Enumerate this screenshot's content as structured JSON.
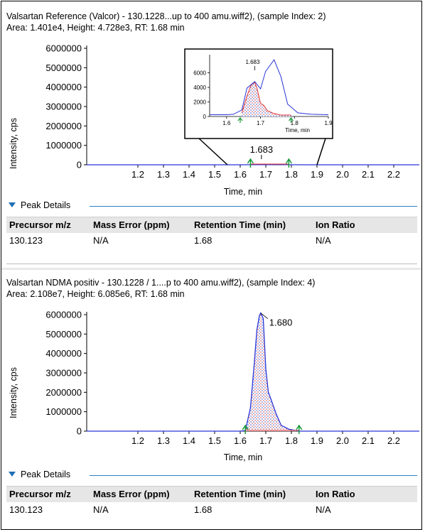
{
  "panel1": {
    "title": "Valsartan Reference (Valcor) - 130.1228...up to 400 amu.wiff2), (sample Index: 2)",
    "stats": "Area: 1.401e4, Height: 4.728e3, RT: 1.68 min"
  },
  "panel2": {
    "title": "Valsartan NDMA positiv - 130.1228 / 1....p to 400 amu.wiff2), (sample Index: 4)",
    "stats": "Area: 2.108e7, Height: 6.085e6, RT: 1.68 min"
  },
  "peak_details": {
    "label": "Peak Details",
    "columns": [
      "Precursor m/z",
      "Mass Error (ppm)",
      "Retention Time (min)",
      "Ion Ratio"
    ],
    "rows_panel1": [
      [
        "130.123",
        "N/A",
        "1.68",
        "N/A"
      ]
    ],
    "rows_panel2": [
      [
        "130.123",
        "N/A",
        "1.68",
        "N/A"
      ]
    ]
  },
  "colors": {
    "trace_blue": "#2a35d6",
    "trace_red": "#e03030",
    "marker_green": "#1a9a3a",
    "accent_blue": "#1f6fb5"
  },
  "chart_data": [
    {
      "type": "line",
      "xlabel": "Time, min",
      "ylabel": "Intensity, cps",
      "xlim": [
        1.0,
        2.3
      ],
      "ylim": [
        0,
        6000000
      ],
      "xticks": [
        1.2,
        1.3,
        1.4,
        1.5,
        1.6,
        1.7,
        1.8,
        1.9,
        2.0,
        2.1,
        2.2
      ],
      "yticks": [
        0,
        1000000,
        2000000,
        3000000,
        4000000,
        5000000,
        6000000
      ],
      "peak_label": "1.683",
      "peak_rt": 1.683,
      "integration_markers": [
        1.64,
        1.79
      ],
      "series": [
        {
          "x": [
            1.0,
            1.55,
            1.6,
            1.65,
            1.683,
            1.7,
            1.74,
            1.78,
            1.85,
            2.3
          ],
          "y": [
            0,
            0,
            200,
            4600,
            5200,
            6200,
            8100,
            3500,
            100,
            0
          ]
        }
      ],
      "inset": {
        "xlim": [
          1.55,
          1.9
        ],
        "ylim": [
          0,
          8500
        ],
        "xticks": [
          1.6,
          1.7,
          1.8,
          1.9
        ],
        "yticks": [
          0,
          2000,
          4000,
          6000
        ],
        "xlabel": "Time, min",
        "peak_label": "1.683",
        "integration_markers": [
          1.64,
          1.79
        ],
        "blue": {
          "x": [
            1.55,
            1.6,
            1.62,
            1.645,
            1.66,
            1.683,
            1.7,
            1.715,
            1.74,
            1.76,
            1.78,
            1.81,
            1.85,
            1.9
          ],
          "y": [
            250,
            250,
            300,
            900,
            3900,
            4800,
            3800,
            6200,
            7800,
            5500,
            1700,
            500,
            300,
            250
          ]
        },
        "red": {
          "x": [
            1.645,
            1.66,
            1.672,
            1.683,
            1.69,
            1.7,
            1.71,
            1.72,
            1.74,
            1.76,
            1.79
          ],
          "y": [
            500,
            2800,
            4300,
            4700,
            3800,
            1800,
            1500,
            800,
            400,
            200,
            200
          ]
        }
      }
    },
    {
      "type": "line",
      "xlabel": "Time, min",
      "ylabel": "Intensity, cps",
      "xlim": [
        1.0,
        2.3
      ],
      "ylim": [
        0,
        6000000
      ],
      "xticks": [
        1.2,
        1.3,
        1.4,
        1.5,
        1.6,
        1.7,
        1.8,
        1.9,
        2.0,
        2.1,
        2.2
      ],
      "yticks": [
        0,
        1000000,
        2000000,
        3000000,
        4000000,
        5000000,
        6000000
      ],
      "peak_label": "1.680",
      "peak_rt": 1.68,
      "integration_markers": [
        1.62,
        1.83
      ],
      "series": [
        {
          "x": [
            1.0,
            1.6,
            1.62,
            1.64,
            1.655,
            1.665,
            1.675,
            1.68,
            1.69,
            1.7,
            1.71,
            1.72,
            1.74,
            1.76,
            1.79,
            1.83,
            2.3
          ],
          "y": [
            0,
            0,
            30000,
            1200000,
            3500000,
            5200000,
            5950000,
            6085000,
            5800000,
            3200000,
            2000000,
            1650000,
            900000,
            300000,
            100000,
            0,
            0
          ]
        }
      ]
    }
  ]
}
